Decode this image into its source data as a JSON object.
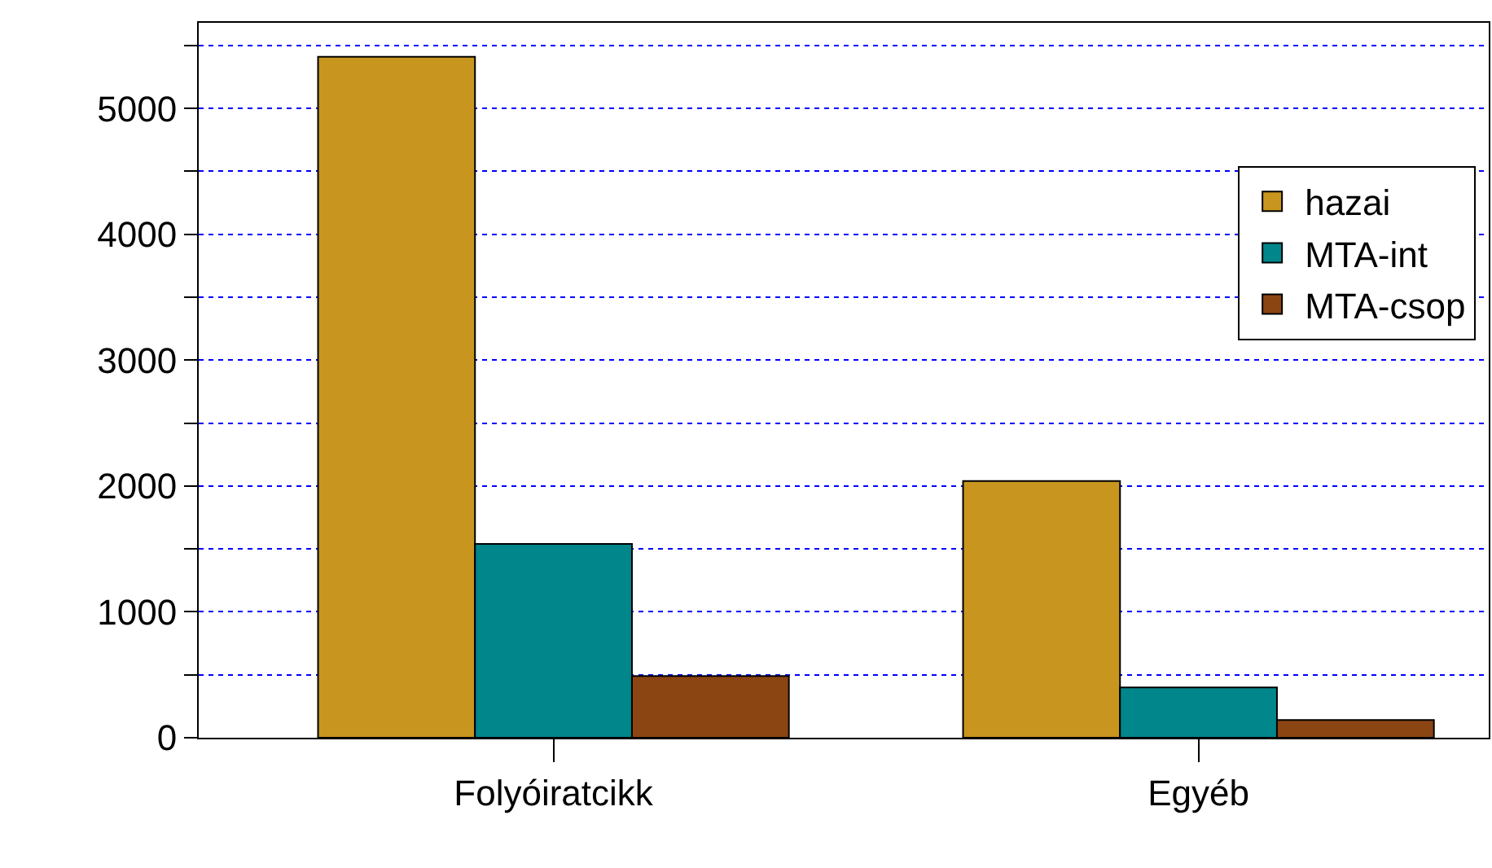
{
  "chart_data": {
    "type": "bar",
    "categories": [
      "Folyóiratcikk",
      "Egyéb"
    ],
    "series": [
      {
        "name": "hazai",
        "color": "#c8961e",
        "values": [
          5410,
          2040
        ]
      },
      {
        "name": "MTA-int",
        "color": "#00868b",
        "values": [
          1540,
          400
        ]
      },
      {
        "name": "MTA-csop",
        "color": "#8b4513",
        "values": [
          490,
          140
        ]
      }
    ],
    "ylim": [
      0,
      5680
    ],
    "yticks": [
      0,
      {
        "value": 500,
        "label": null
      },
      1000,
      {
        "value": 1500,
        "label": null
      },
      2000,
      {
        "value": 2500,
        "label": null
      },
      3000,
      {
        "value": 3500,
        "label": null
      },
      4000,
      {
        "value": 4500,
        "label": null
      },
      5000,
      {
        "value": 5500,
        "label": null
      }
    ],
    "grid": "y",
    "legend": "top right"
  }
}
